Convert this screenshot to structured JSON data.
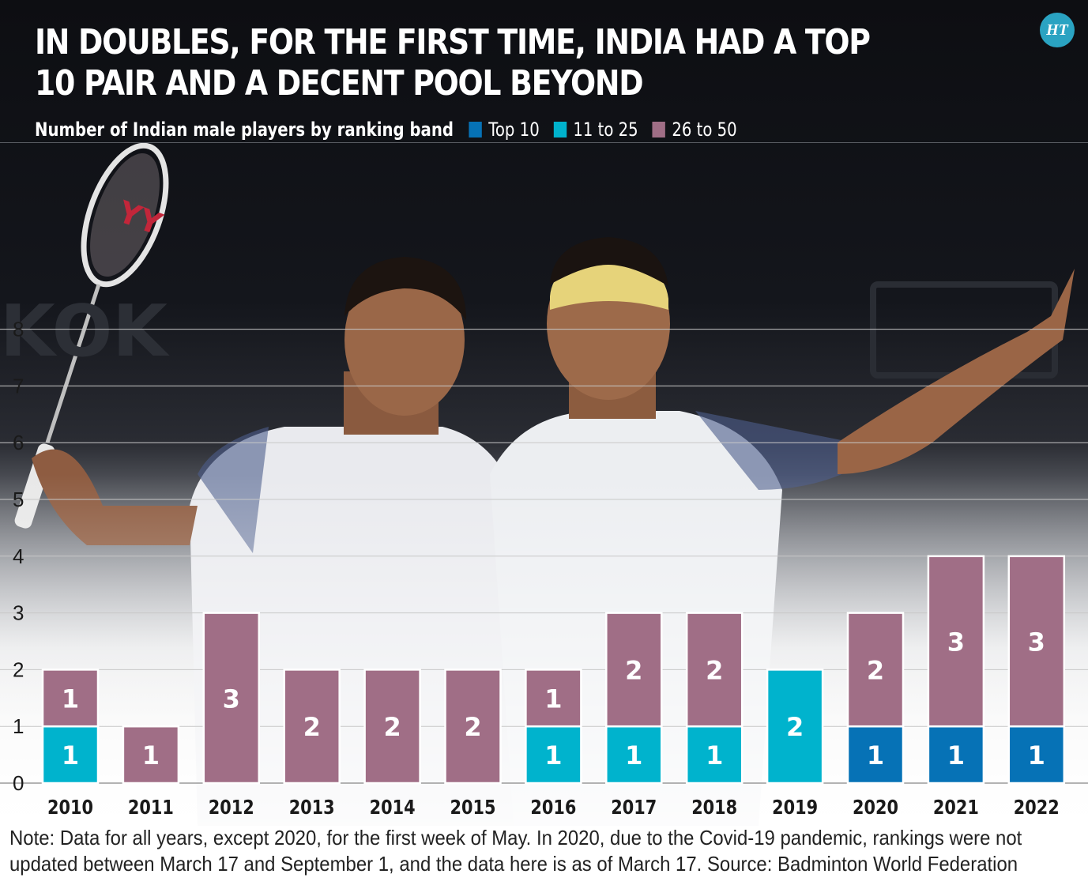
{
  "header": {
    "title": "IN DOUBLES, FOR THE FIRST TIME, INDIA HAD A TOP 10 PAIR AND A DECENT POOL BEYOND",
    "logo_text": "HT"
  },
  "footer": {
    "note": "Note: Data for all years, except 2020, for the first week of May. In 2020, due to the Covid-19 pandemic, rankings were not updated between March 17 and September 1, and the data here is as of March 17.  Source: Badminton World Federation"
  },
  "colors": {
    "top10": "#0672b6",
    "band_11_25": "#00b3cd",
    "band_26_50": "#a06e86",
    "grid": "#c8c8c8",
    "axis_text": "#1a1a1a"
  },
  "icons": {
    "background": "badminton-players-photo",
    "logo": "ht-logo"
  },
  "chart_data": {
    "type": "bar",
    "stacked": true,
    "title": "IN DOUBLES, FOR THE FIRST TIME, INDIA HAD A TOP 10 PAIR AND A DECENT POOL BEYOND",
    "subtitle": "Number of Indian male players by ranking band",
    "xlabel": "",
    "ylabel": "",
    "categories": [
      "2010",
      "2011",
      "2012",
      "2013",
      "2014",
      "2015",
      "2016",
      "2017",
      "2018",
      "2019",
      "2020",
      "2021",
      "2022"
    ],
    "series": [
      {
        "name": "Top 10",
        "color": "#0672b6",
        "values": [
          0,
          0,
          0,
          0,
          0,
          0,
          0,
          0,
          0,
          0,
          1,
          1,
          1
        ]
      },
      {
        "name": "11 to 25",
        "color": "#00b3cd",
        "values": [
          1,
          0,
          0,
          0,
          0,
          0,
          1,
          1,
          1,
          2,
          0,
          0,
          0
        ]
      },
      {
        "name": "26 to 50",
        "color": "#a06e86",
        "values": [
          1,
          1,
          3,
          2,
          2,
          2,
          1,
          2,
          2,
          0,
          2,
          3,
          3
        ]
      }
    ],
    "ylim": [
      0,
      8
    ],
    "yticks": [
      0,
      1,
      2,
      3,
      4,
      5,
      6,
      7,
      8
    ],
    "grid": true,
    "legend": "top, inline after subtitle",
    "data_labels": true
  }
}
